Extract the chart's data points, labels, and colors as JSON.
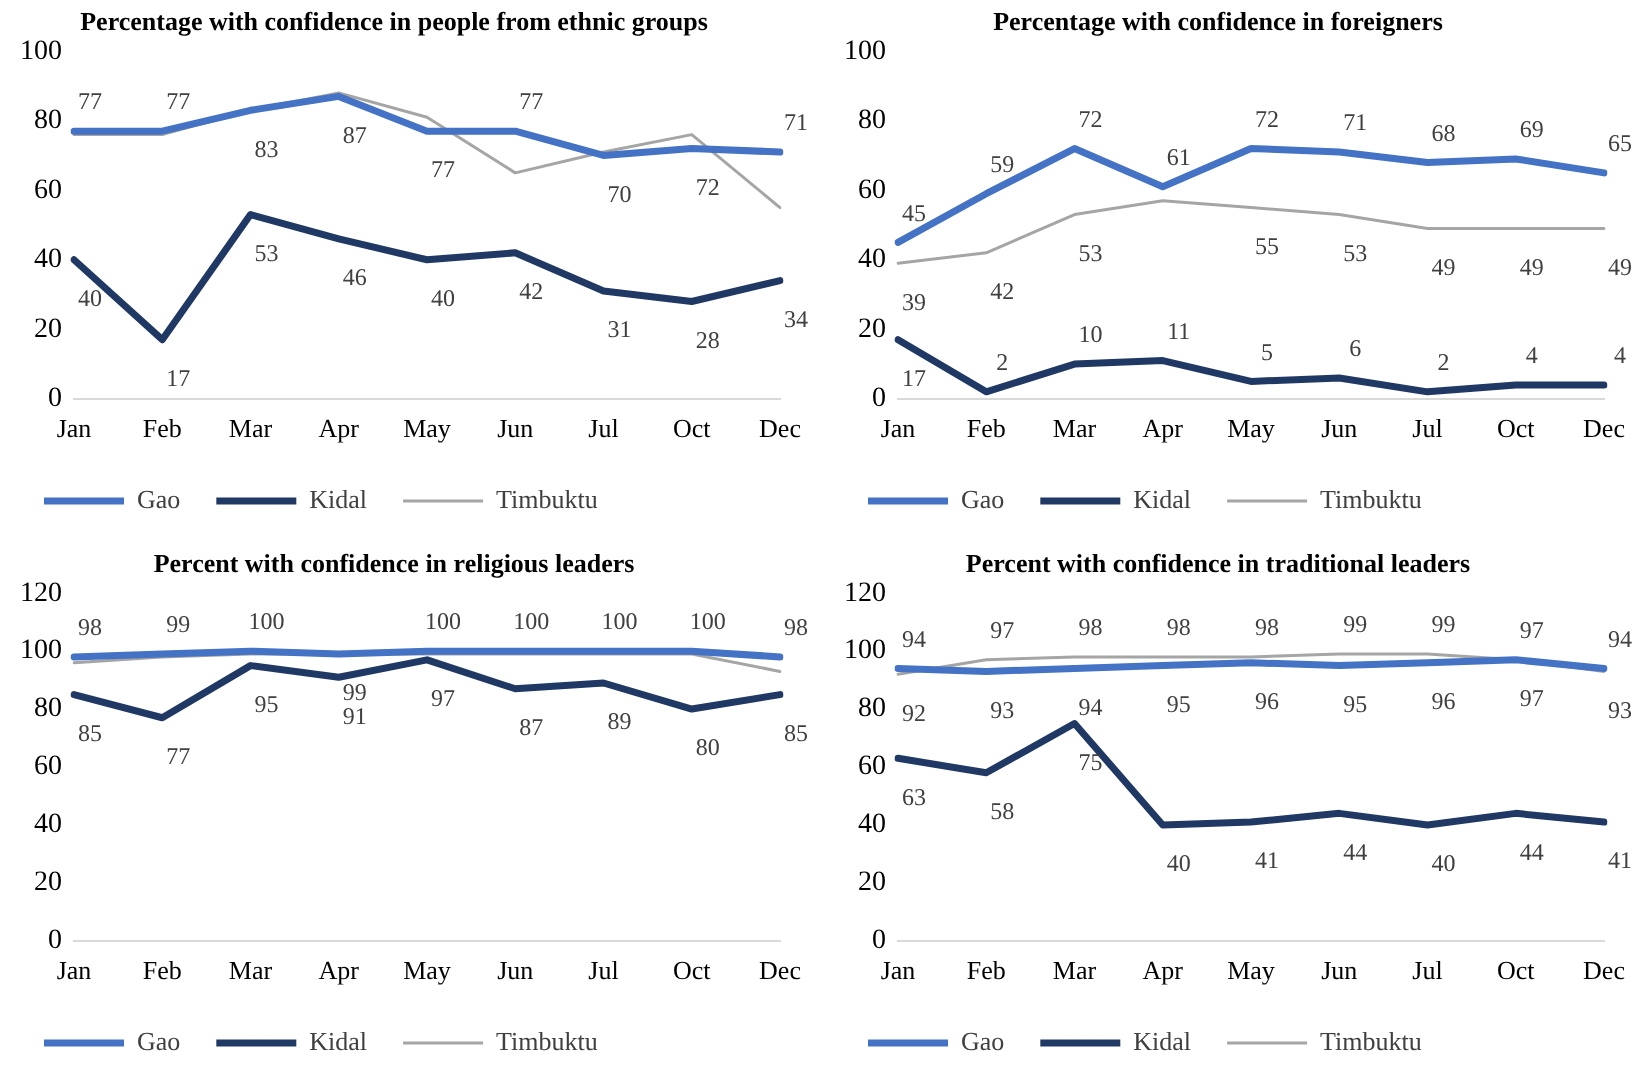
{
  "chart_data": [
    {
      "type": "line",
      "title": "Percentage with confidence in people from ethnic groups",
      "categories": [
        "Jan",
        "Feb",
        "Mar",
        "Apr",
        "May",
        "Jun",
        "Jul",
        "Oct",
        "Dec"
      ],
      "ylim": [
        0,
        100
      ],
      "yticks": [
        0,
        20,
        40,
        60,
        80,
        100
      ],
      "grid": false,
      "legend": "bottom",
      "marker": "none",
      "series": [
        {
          "name": "Gao",
          "color": "#4472c4",
          "values": [
            77,
            77,
            83,
            87,
            77,
            77,
            70,
            72,
            71
          ],
          "value_labels": [
            "77",
            "77",
            "83",
            "87",
            "77",
            "77",
            "70",
            "72",
            "71"
          ]
        },
        {
          "name": "Kidal",
          "color": "#203864",
          "values": [
            40,
            17,
            53,
            46,
            40,
            42,
            31,
            28,
            34
          ],
          "value_labels": [
            "40",
            "17",
            "53",
            "46",
            "40",
            "42",
            "31",
            "28",
            "34"
          ]
        },
        {
          "name": "Timbuktu",
          "color": "#a5a5a5",
          "values": [
            76,
            76,
            83,
            88,
            81,
            65,
            71,
            76,
            55
          ]
        }
      ]
    },
    {
      "type": "line",
      "title": "Percentage with confidence in foreigners",
      "categories": [
        "Jan",
        "Feb",
        "Mar",
        "Apr",
        "May",
        "Jun",
        "Jul",
        "Oct",
        "Dec"
      ],
      "ylim": [
        0,
        100
      ],
      "yticks": [
        0,
        20,
        40,
        60,
        80,
        100
      ],
      "grid": false,
      "legend": "bottom",
      "marker": "none",
      "series": [
        {
          "name": "Gao",
          "color": "#4472c4",
          "values": [
            45,
            59,
            72,
            61,
            72,
            71,
            68,
            69,
            65
          ],
          "value_labels": [
            "45",
            "59",
            "72",
            "61",
            "72",
            "71",
            "68",
            "69",
            "65"
          ]
        },
        {
          "name": "Kidal",
          "color": "#203864",
          "values": [
            17,
            2,
            10,
            11,
            5,
            6,
            2,
            4,
            4
          ],
          "value_labels": [
            "17",
            "2",
            "10",
            "11",
            "5",
            "6",
            "2",
            "4",
            "4"
          ]
        },
        {
          "name": "Timbuktu",
          "color": "#a5a5a5",
          "values": [
            39,
            42,
            53,
            57,
            55,
            53,
            49,
            49,
            49
          ],
          "value_labels": [
            "39",
            "42",
            "53",
            null,
            "55",
            "53",
            "49",
            "49",
            "49"
          ]
        }
      ]
    },
    {
      "type": "line",
      "title": "Percent with confidence in religious leaders",
      "categories": [
        "Jan",
        "Feb",
        "Mar",
        "Apr",
        "May",
        "Jun",
        "Jul",
        "Oct",
        "Dec"
      ],
      "ylim": [
        0,
        120
      ],
      "yticks": [
        0,
        20,
        40,
        60,
        80,
        100,
        120
      ],
      "grid": false,
      "legend": "bottom",
      "marker": "none",
      "series": [
        {
          "name": "Gao",
          "color": "#4472c4",
          "values": [
            98,
            99,
            100,
            99,
            100,
            100,
            100,
            100,
            98
          ],
          "value_labels": [
            "98",
            "99",
            "100",
            "99",
            "100",
            "100",
            "100",
            "100",
            "98"
          ]
        },
        {
          "name": "Kidal",
          "color": "#203864",
          "values": [
            85,
            77,
            95,
            91,
            97,
            87,
            89,
            80,
            85
          ],
          "value_labels": [
            "85",
            "77",
            "95",
            "91",
            "97",
            "87",
            "89",
            "80",
            "85"
          ]
        },
        {
          "name": "Timbuktu",
          "color": "#a5a5a5",
          "values": [
            96,
            98,
            99,
            99,
            99,
            99,
            99,
            99,
            93
          ]
        }
      ]
    },
    {
      "type": "line",
      "title": "Percent with confidence in traditional leaders",
      "categories": [
        "Jan",
        "Feb",
        "Mar",
        "Apr",
        "May",
        "Jun",
        "Jul",
        "Oct",
        "Dec"
      ],
      "ylim": [
        0,
        120
      ],
      "yticks": [
        0,
        20,
        40,
        60,
        80,
        100,
        120
      ],
      "grid": false,
      "legend": "bottom",
      "marker": "none",
      "series": [
        {
          "name": "Gao",
          "color": "#4472c4",
          "values": [
            94,
            93,
            94,
            95,
            96,
            95,
            96,
            97,
            94
          ],
          "value_labels": [
            "94",
            "93",
            "94",
            "95",
            "96",
            "95",
            "96",
            "97",
            "94"
          ]
        },
        {
          "name": "Kidal",
          "color": "#203864",
          "values": [
            63,
            58,
            75,
            40,
            41,
            44,
            40,
            44,
            41
          ],
          "value_labels": [
            "63",
            "58",
            "75",
            "40",
            "41",
            "44",
            "40",
            "44",
            "41"
          ]
        },
        {
          "name": "Timbuktu",
          "color": "#a5a5a5",
          "values": [
            92,
            97,
            98,
            98,
            98,
            99,
            99,
            97,
            93
          ],
          "value_labels": [
            "92",
            "97",
            "98",
            "98",
            "98",
            "99",
            "99",
            "97",
            "93"
          ]
        }
      ]
    }
  ]
}
